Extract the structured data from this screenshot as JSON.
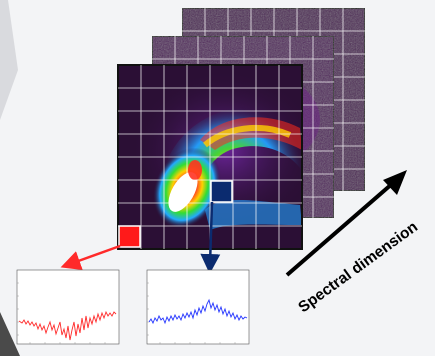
{
  "figure": {
    "axis_label": "Spectral dimension"
  },
  "colors": {
    "background": "#f3f4f6",
    "frame_back": "#4a1f53",
    "frame_mid": "#4f1f5a",
    "frame_front_base": "#2b0f35",
    "grid": "#ffffff",
    "border": "#111111",
    "red_marker": "#ff1a1a",
    "blue_marker": "#0b2b6f",
    "red_arrow": "#ff2a2a",
    "blue_arrow": "#0b2b6f",
    "red_spectrum": "#ff2a2a",
    "blue_spectrum": "#2233ff",
    "black_arrow": "#000000"
  },
  "icons": {
    "red_pixel": "red-square-marker",
    "blue_pixel": "navy-square-marker",
    "axis_arrow": "arrow-icon"
  }
}
